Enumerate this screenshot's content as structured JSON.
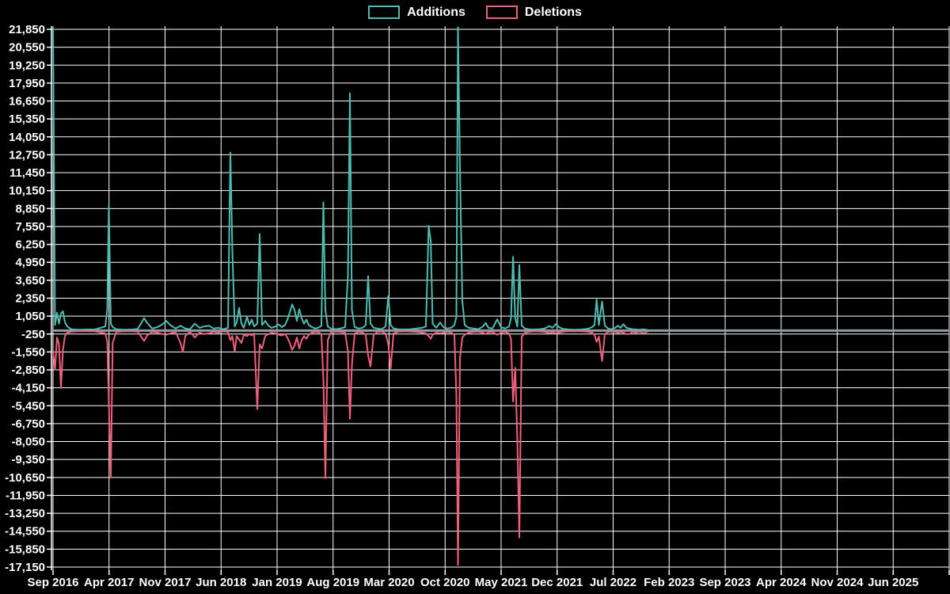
{
  "legend": {
    "additions_label": "Additions",
    "deletions_label": "Deletions"
  },
  "colors": {
    "background": "#000000",
    "grid": "#ffffff",
    "axis_text": "#ffffff",
    "zero_line": "#8d9ca4",
    "additions": "#4dbdb1",
    "deletions": "#f25f7c"
  },
  "chart_data": {
    "type": "line",
    "title": "",
    "xlabel": "",
    "ylabel": "",
    "legend_position": "top-center",
    "grid": true,
    "y_range": [
      -17150,
      21850
    ],
    "y_tick_step": 1300,
    "y_tick_labels": [
      "21,850",
      "20,550",
      "19,250",
      "17,950",
      "16,650",
      "15,350",
      "14,050",
      "12,750",
      "11,450",
      "10,150",
      "8,850",
      "7,550",
      "6,250",
      "4,950",
      "3,650",
      "2,350",
      "1,050",
      "-250",
      "-1,550",
      "-2,850",
      "-4,150",
      "-5,450",
      "-6,750",
      "-8,050",
      "-9,350",
      "-10,650",
      "-11,950",
      "-13,250",
      "-14,550",
      "-15,850",
      "-17,150"
    ],
    "x_tick_labels": [
      "Sep 2016",
      "Apr 2017",
      "Nov 2017",
      "Jun 2018",
      "Jan 2019",
      "Aug 2019",
      "Mar 2020",
      "Oct 2020",
      "May 2021",
      "Dec 2021",
      "Jul 2022",
      "Feb 2023",
      "Sep 2023",
      "Apr 2024",
      "Nov 2024",
      "Jun 2025"
    ],
    "x_tick_step_months": 7,
    "x_axis_note": "weekly data, x stored as months since Sep 2016; series activity ends ~Nov 2022, axis extends past Jun 2025",
    "series_names": [
      "Additions",
      "Deletions"
    ],
    "columns": [
      "months_since_sep_2016",
      "additions",
      "deletions"
    ],
    "points": [
      [
        0.0,
        22000,
        -1500
      ],
      [
        0.25,
        400,
        -2830
      ],
      [
        0.49,
        1300,
        -500
      ],
      [
        0.74,
        500,
        -1000
      ],
      [
        0.99,
        1250,
        -4150
      ],
      [
        1.24,
        1400,
        -1400
      ],
      [
        1.48,
        600,
        -400
      ],
      [
        1.78,
        300,
        -150
      ],
      [
        2.28,
        100,
        -80
      ],
      [
        3.27,
        60,
        -40
      ],
      [
        4.25,
        80,
        -50
      ],
      [
        5.24,
        80,
        -60
      ],
      [
        6.53,
        300,
        -200
      ],
      [
        6.78,
        1500,
        -800
      ],
      [
        6.98,
        9050,
        -5200
      ],
      [
        7.22,
        500,
        -10650
      ],
      [
        7.45,
        250,
        -900
      ],
      [
        7.9,
        100,
        -100
      ],
      [
        8.9,
        60,
        -50
      ],
      [
        9.9,
        80,
        -60
      ],
      [
        10.6,
        120,
        -80
      ],
      [
        11.38,
        900,
        -750
      ],
      [
        11.77,
        550,
        -350
      ],
      [
        12.4,
        150,
        -100
      ],
      [
        13.05,
        250,
        -150
      ],
      [
        13.65,
        450,
        -250
      ],
      [
        14.15,
        700,
        -300
      ],
      [
        14.64,
        400,
        -200
      ],
      [
        15.33,
        150,
        -100
      ],
      [
        15.93,
        350,
        -900
      ],
      [
        16.23,
        250,
        -1550
      ],
      [
        16.52,
        150,
        -400
      ],
      [
        17.12,
        100,
        -80
      ],
      [
        17.71,
        500,
        -500
      ],
      [
        18.3,
        200,
        -150
      ],
      [
        18.9,
        300,
        -250
      ],
      [
        19.49,
        350,
        -200
      ],
      [
        20.08,
        150,
        -100
      ],
      [
        20.68,
        200,
        -150
      ],
      [
        21.27,
        100,
        -60
      ],
      [
        21.87,
        200,
        -100
      ],
      [
        22.16,
        12900,
        -700
      ],
      [
        22.41,
        5800,
        -400
      ],
      [
        22.71,
        300,
        -1500
      ],
      [
        22.95,
        600,
        -400
      ],
      [
        23.25,
        1650,
        -650
      ],
      [
        23.55,
        500,
        -900
      ],
      [
        23.84,
        200,
        -300
      ],
      [
        24.24,
        1000,
        -400
      ],
      [
        24.54,
        400,
        -250
      ],
      [
        24.83,
        800,
        -350
      ],
      [
        25.13,
        300,
        -200
      ],
      [
        25.53,
        500,
        -5700
      ],
      [
        25.82,
        7000,
        -1000
      ],
      [
        26.12,
        400,
        -1300
      ],
      [
        26.52,
        700,
        -400
      ],
      [
        26.91,
        350,
        -250
      ],
      [
        27.31,
        200,
        -150
      ],
      [
        27.8,
        300,
        -200
      ],
      [
        28.2,
        450,
        -300
      ],
      [
        28.59,
        250,
        -350
      ],
      [
        28.99,
        400,
        -250
      ],
      [
        29.29,
        800,
        -500
      ],
      [
        29.58,
        1300,
        -900
      ],
      [
        29.88,
        1900,
        -1400
      ],
      [
        30.18,
        1500,
        -1100
      ],
      [
        30.47,
        700,
        -500
      ],
      [
        30.77,
        1550,
        -1300
      ],
      [
        31.07,
        900,
        -700
      ],
      [
        31.36,
        500,
        -400
      ],
      [
        31.66,
        800,
        -600
      ],
      [
        31.96,
        400,
        -300
      ],
      [
        32.35,
        250,
        -150
      ],
      [
        32.75,
        150,
        -100
      ],
      [
        33.14,
        200,
        -120
      ],
      [
        33.54,
        350,
        -250
      ],
      [
        33.79,
        9300,
        -3600
      ],
      [
        34.04,
        1500,
        -10700
      ],
      [
        34.33,
        300,
        -700
      ],
      [
        34.73,
        150,
        -100
      ],
      [
        35.32,
        100,
        -80
      ],
      [
        35.92,
        150,
        -100
      ],
      [
        36.51,
        250,
        -150
      ],
      [
        36.86,
        4000,
        -1500
      ],
      [
        37.1,
        17200,
        -6400
      ],
      [
        37.35,
        1500,
        -2500
      ],
      [
        37.7,
        250,
        -200
      ],
      [
        38.19,
        150,
        -100
      ],
      [
        38.69,
        200,
        -150
      ],
      [
        39.08,
        400,
        -300
      ],
      [
        39.38,
        3950,
        -1800
      ],
      [
        39.68,
        500,
        -2600
      ],
      [
        40.07,
        200,
        -300
      ],
      [
        40.57,
        150,
        -100
      ],
      [
        41.06,
        100,
        -80
      ],
      [
        41.56,
        300,
        -200
      ],
      [
        41.9,
        2500,
        -1000
      ],
      [
        42.2,
        400,
        -2750
      ],
      [
        42.55,
        150,
        -200
      ],
      [
        43.14,
        100,
        -80
      ],
      [
        43.83,
        80,
        -60
      ],
      [
        44.62,
        100,
        -70
      ],
      [
        45.42,
        150,
        -100
      ],
      [
        46.11,
        200,
        -150
      ],
      [
        46.6,
        300,
        -200
      ],
      [
        46.95,
        7600,
        -400
      ],
      [
        47.2,
        6500,
        -600
      ],
      [
        47.44,
        500,
        -300
      ],
      [
        47.89,
        200,
        -150
      ],
      [
        48.38,
        600,
        -200
      ],
      [
        48.78,
        250,
        -150
      ],
      [
        49.27,
        150,
        -100
      ],
      [
        49.77,
        200,
        -150
      ],
      [
        50.16,
        400,
        -300
      ],
      [
        50.41,
        1000,
        -4750
      ],
      [
        50.61,
        22000,
        -17000
      ],
      [
        50.86,
        11800,
        -2000
      ],
      [
        51.15,
        2150,
        -500
      ],
      [
        51.45,
        400,
        -300
      ],
      [
        51.94,
        200,
        -150
      ],
      [
        52.54,
        150,
        -100
      ],
      [
        53.13,
        100,
        -80
      ],
      [
        53.73,
        300,
        -150
      ],
      [
        54.07,
        550,
        -250
      ],
      [
        54.42,
        200,
        -120
      ],
      [
        54.91,
        150,
        -100
      ],
      [
        55.51,
        810,
        -300
      ],
      [
        56.0,
        250,
        -150
      ],
      [
        56.5,
        150,
        -100
      ],
      [
        56.99,
        300,
        -200
      ],
      [
        57.24,
        900,
        -600
      ],
      [
        57.49,
        5350,
        -5150
      ],
      [
        57.76,
        900,
        -2700
      ],
      [
        58.03,
        300,
        -8000
      ],
      [
        58.28,
        4750,
        -15000
      ],
      [
        58.57,
        350,
        -450
      ],
      [
        58.97,
        150,
        -150
      ],
      [
        59.46,
        100,
        -100
      ],
      [
        60.06,
        80,
        -60
      ],
      [
        60.75,
        100,
        -70
      ],
      [
        61.44,
        150,
        -100
      ],
      [
        62.04,
        330,
        -180
      ],
      [
        62.43,
        200,
        -120
      ],
      [
        62.83,
        465,
        -200
      ],
      [
        63.22,
        250,
        -150
      ],
      [
        63.72,
        120,
        -80
      ],
      [
        64.41,
        80,
        -50
      ],
      [
        65.2,
        60,
        -40
      ],
      [
        65.99,
        80,
        -50
      ],
      [
        66.79,
        120,
        -80
      ],
      [
        67.38,
        250,
        -150
      ],
      [
        67.68,
        400,
        -300
      ],
      [
        67.93,
        2250,
        -820
      ],
      [
        68.22,
        400,
        -440
      ],
      [
        68.62,
        2110,
        -2200
      ],
      [
        68.96,
        350,
        -250
      ],
      [
        69.36,
        150,
        -100
      ],
      [
        69.76,
        100,
        -80
      ],
      [
        70.25,
        200,
        -100
      ],
      [
        70.6,
        350,
        -150
      ],
      [
        70.94,
        200,
        -100
      ],
      [
        71.29,
        465,
        -150
      ],
      [
        71.64,
        200,
        -250
      ],
      [
        72.03,
        150,
        -250
      ],
      [
        72.43,
        100,
        -100
      ],
      [
        72.82,
        80,
        -150
      ],
      [
        73.32,
        60,
        -80
      ],
      [
        73.81,
        100,
        -200
      ],
      [
        74.21,
        50,
        -100
      ],
      [
        74.5,
        0,
        0
      ]
    ]
  }
}
